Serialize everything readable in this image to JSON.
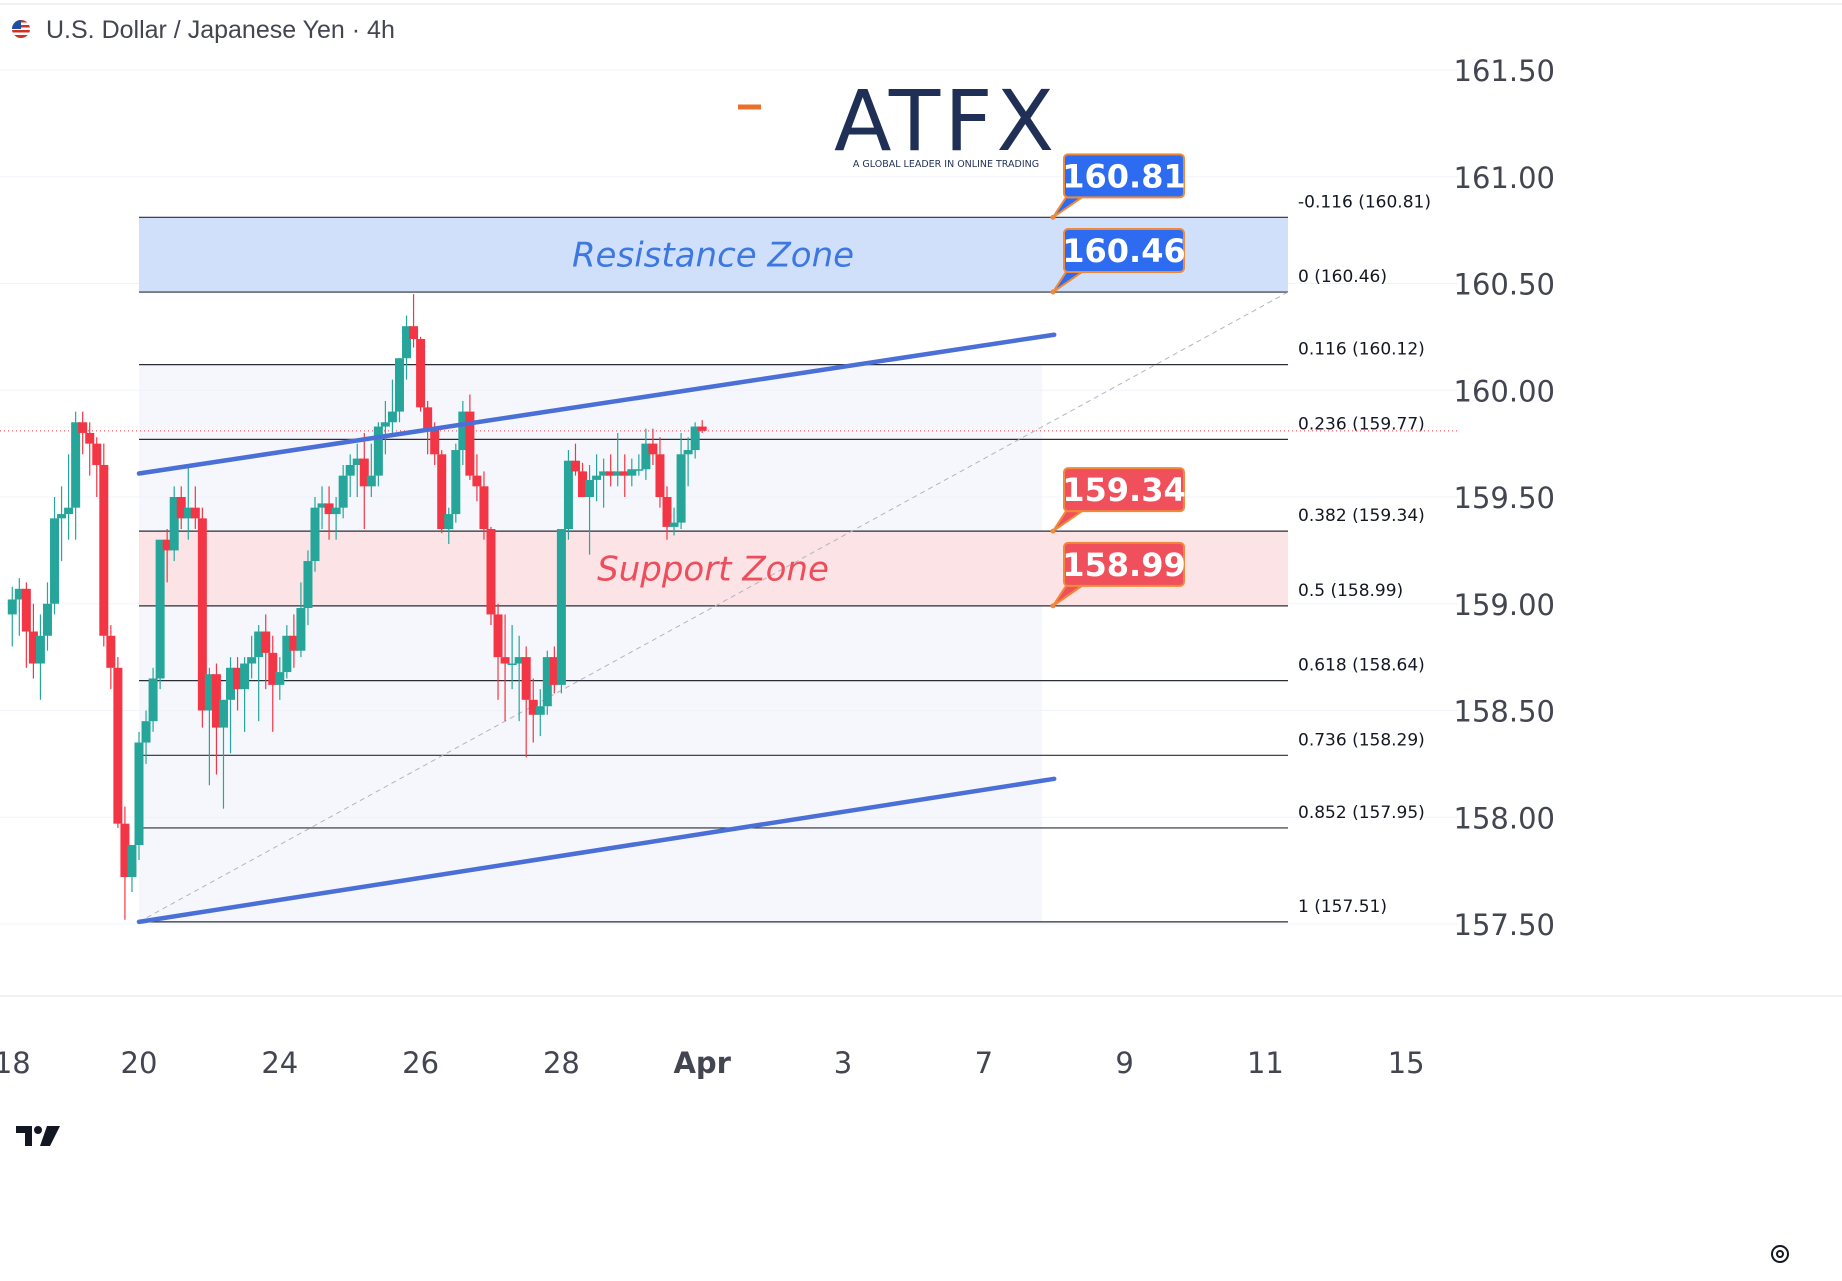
{
  "header": {
    "title": "U.S. Dollar / Japanese Yen",
    "separator": "·",
    "interval": "4h",
    "flag_icon": "us-flag-icon"
  },
  "watermark": {
    "logo_text": "ATFX",
    "tagline": "A GLOBAL LEADER IN ONLINE TRADING"
  },
  "colors": {
    "up": "#26a69a",
    "down": "#f23645",
    "channel": "#4a6fd6",
    "resistance_fill": "#d0e0fb",
    "support_fill": "#fbe3e6",
    "resistance_text": "#3d78e0",
    "support_text": "#ee4d5b",
    "badge_blue": "#2d6cf0",
    "badge_red": "#f0505c",
    "badge_border": "#f08a3a",
    "logo_blue": "#1f2f55",
    "logo_orange": "#e8702a"
  },
  "chart_data": {
    "type": "candlestick",
    "ylim": [
      157.1,
      161.7
    ],
    "y_ticks": [
      "161.50",
      "161.00",
      "160.50",
      "160.00",
      "159.50",
      "159.00",
      "158.50",
      "158.00",
      "157.50"
    ],
    "y_tick_values": [
      161.5,
      161.0,
      160.5,
      160.0,
      159.5,
      159.0,
      158.5,
      158.0,
      157.5
    ],
    "x_ticks": [
      "18",
      "20",
      "24",
      "26",
      "28",
      "Apr",
      "3",
      "7",
      "9",
      "11",
      "15"
    ],
    "x_tick_bar_index": [
      -18,
      0,
      20,
      40,
      60,
      80,
      100,
      120,
      140,
      160,
      180
    ],
    "candles": [
      [
        158.95,
        159.08,
        158.8,
        159.02
      ],
      [
        159.02,
        159.12,
        158.85,
        159.07
      ],
      [
        159.07,
        159.1,
        158.7,
        158.87
      ],
      [
        158.87,
        159.0,
        158.65,
        158.72
      ],
      [
        158.72,
        158.95,
        158.55,
        158.85
      ],
      [
        158.85,
        159.1,
        158.78,
        159.0
      ],
      [
        159.0,
        159.5,
        158.95,
        159.4
      ],
      [
        159.4,
        159.55,
        159.2,
        159.42
      ],
      [
        159.42,
        159.7,
        159.3,
        159.45
      ],
      [
        159.45,
        159.9,
        159.3,
        159.85
      ],
      [
        159.85,
        159.9,
        159.7,
        159.8
      ],
      [
        159.8,
        159.85,
        159.6,
        159.75
      ],
      [
        159.75,
        159.78,
        159.5,
        159.65
      ],
      [
        159.65,
        159.75,
        158.8,
        158.85
      ],
      [
        158.85,
        158.9,
        158.6,
        158.7
      ],
      [
        158.7,
        158.75,
        157.95,
        157.97
      ],
      [
        157.97,
        158.05,
        157.52,
        157.72
      ],
      [
        157.72,
        157.85,
        157.65,
        157.87
      ],
      [
        157.87,
        158.4,
        157.8,
        158.35
      ],
      [
        158.35,
        158.5,
        158.25,
        158.45
      ],
      [
        158.45,
        158.7,
        158.4,
        158.65
      ],
      [
        158.65,
        159.3,
        158.6,
        159.3
      ],
      [
        159.3,
        159.35,
        159.1,
        159.25
      ],
      [
        159.25,
        159.55,
        159.2,
        159.5
      ],
      [
        159.5,
        159.55,
        159.35,
        159.4
      ],
      [
        159.4,
        159.65,
        159.3,
        159.45
      ],
      [
        159.45,
        159.55,
        159.35,
        159.4
      ],
      [
        159.4,
        159.45,
        158.42,
        158.5
      ],
      [
        158.5,
        158.7,
        158.15,
        158.67
      ],
      [
        158.67,
        158.72,
        158.2,
        158.42
      ],
      [
        158.42,
        158.55,
        158.04,
        158.55
      ],
      [
        158.55,
        158.75,
        158.3,
        158.7
      ],
      [
        158.7,
        158.75,
        158.5,
        158.6
      ],
      [
        158.6,
        158.75,
        158.4,
        158.72
      ],
      [
        158.72,
        158.85,
        158.65,
        158.75
      ],
      [
        158.75,
        158.9,
        158.45,
        158.87
      ],
      [
        158.87,
        158.95,
        158.6,
        158.77
      ],
      [
        158.77,
        158.85,
        158.4,
        158.62
      ],
      [
        158.62,
        158.75,
        158.55,
        158.68
      ],
      [
        158.68,
        158.9,
        158.65,
        158.85
      ],
      [
        158.85,
        158.95,
        158.7,
        158.78
      ],
      [
        158.78,
        159.1,
        158.75,
        158.98
      ],
      [
        158.98,
        159.25,
        158.9,
        159.2
      ],
      [
        159.2,
        159.5,
        159.15,
        159.45
      ],
      [
        159.45,
        159.55,
        159.35,
        159.47
      ],
      [
        159.47,
        159.55,
        159.3,
        159.42
      ],
      [
        159.42,
        159.5,
        159.3,
        159.45
      ],
      [
        159.45,
        159.65,
        159.4,
        159.6
      ],
      [
        159.6,
        159.7,
        159.5,
        159.65
      ],
      [
        159.65,
        159.75,
        159.5,
        159.68
      ],
      [
        159.68,
        159.8,
        159.35,
        159.55
      ],
      [
        159.55,
        159.75,
        159.5,
        159.6
      ],
      [
        159.6,
        159.85,
        159.55,
        159.83
      ],
      [
        159.83,
        159.95,
        159.7,
        159.85
      ],
      [
        159.85,
        160.05,
        159.8,
        159.9
      ],
      [
        159.9,
        160.15,
        159.85,
        160.15
      ],
      [
        160.15,
        160.35,
        160.05,
        160.3
      ],
      [
        160.3,
        160.45,
        160.2,
        160.24
      ],
      [
        160.24,
        160.25,
        159.9,
        159.92
      ],
      [
        159.92,
        159.95,
        159.7,
        159.82
      ],
      [
        159.82,
        159.85,
        159.65,
        159.7
      ],
      [
        159.7,
        159.72,
        159.33,
        159.35
      ],
      [
        159.35,
        159.45,
        159.28,
        159.42
      ],
      [
        159.42,
        159.75,
        159.38,
        159.72
      ],
      [
        159.72,
        159.95,
        159.65,
        159.9
      ],
      [
        159.9,
        159.98,
        159.58,
        159.6
      ],
      [
        159.6,
        159.7,
        159.48,
        159.55
      ],
      [
        159.55,
        159.62,
        159.3,
        159.35
      ],
      [
        159.35,
        159.36,
        158.9,
        158.95
      ],
      [
        158.95,
        159.0,
        158.55,
        158.75
      ],
      [
        158.75,
        158.95,
        158.45,
        158.72
      ],
      [
        158.72,
        158.9,
        158.6,
        158.72
      ],
      [
        158.72,
        158.85,
        158.45,
        158.75
      ],
      [
        158.75,
        158.8,
        158.28,
        158.55
      ],
      [
        158.55,
        158.65,
        158.35,
        158.48
      ],
      [
        158.48,
        158.6,
        158.38,
        158.52
      ],
      [
        158.52,
        158.78,
        158.48,
        158.75
      ],
      [
        158.75,
        158.8,
        158.58,
        158.62
      ],
      [
        158.62,
        159.35,
        158.58,
        159.35
      ],
      [
        159.35,
        159.72,
        159.3,
        159.67
      ],
      [
        159.67,
        159.75,
        159.6,
        159.62
      ],
      [
        159.62,
        159.66,
        159.5,
        159.5
      ],
      [
        159.5,
        159.65,
        159.23,
        159.58
      ],
      [
        159.58,
        159.7,
        159.48,
        159.6
      ],
      [
        159.6,
        159.68,
        159.45,
        159.62
      ],
      [
        159.62,
        159.7,
        159.55,
        159.6
      ],
      [
        159.6,
        159.8,
        159.55,
        159.62
      ],
      [
        159.62,
        159.7,
        159.5,
        159.6
      ],
      [
        159.6,
        159.68,
        159.55,
        159.63
      ],
      [
        159.63,
        159.7,
        159.6,
        159.63
      ],
      [
        159.63,
        159.82,
        159.58,
        159.75
      ],
      [
        159.75,
        159.82,
        159.65,
        159.7
      ],
      [
        159.7,
        159.78,
        159.45,
        159.5
      ],
      [
        159.5,
        159.55,
        159.3,
        159.36
      ],
      [
        159.36,
        159.45,
        159.32,
        159.38
      ],
      [
        159.38,
        159.8,
        159.35,
        159.7
      ],
      [
        159.7,
        159.78,
        159.55,
        159.72
      ],
      [
        159.72,
        159.85,
        159.68,
        159.83
      ],
      [
        159.83,
        159.86,
        159.8,
        159.81
      ]
    ],
    "channel": {
      "upper": {
        "from": [
          0,
          159.61
        ],
        "to": [
          130,
          160.26
        ]
      },
      "lower": {
        "from": [
          0,
          157.51
        ],
        "to": [
          130,
          158.18
        ]
      }
    },
    "fib_levels": [
      {
        "ratio": "-0.116",
        "price": 160.81,
        "label": "-0.116 (160.81)"
      },
      {
        "ratio": "0",
        "price": 160.46,
        "label": "0 (160.46)"
      },
      {
        "ratio": "0.116",
        "price": 160.12,
        "label": "0.116 (160.12)"
      },
      {
        "ratio": "0.236",
        "price": 159.77,
        "label": "0.236 (159.77)"
      },
      {
        "ratio": "0.382",
        "price": 159.34,
        "label": "0.382 (159.34)"
      },
      {
        "ratio": "0.5",
        "price": 158.99,
        "label": "0.5 (158.99)"
      },
      {
        "ratio": "0.618",
        "price": 158.64,
        "label": "0.618 (158.64)"
      },
      {
        "ratio": "0.736",
        "price": 158.29,
        "label": "0.736 (158.29)"
      },
      {
        "ratio": "0.852",
        "price": 157.95,
        "label": "0.852 (157.95)"
      },
      {
        "ratio": "1",
        "price": 157.51,
        "label": "1 (157.51)"
      }
    ],
    "zones": [
      {
        "name": "Resistance Zone",
        "top": 160.81,
        "bottom": 160.46,
        "color": "blue"
      },
      {
        "name": "Support Zone",
        "top": 159.34,
        "bottom": 158.99,
        "color": "red"
      }
    ],
    "badges": [
      {
        "text": "160.81",
        "price": 160.81,
        "color": "blue"
      },
      {
        "text": "160.46",
        "price": 160.46,
        "color": "blue"
      },
      {
        "text": "159.34",
        "price": 159.34,
        "color": "red"
      },
      {
        "text": "158.99",
        "price": 158.99,
        "color": "red"
      }
    ],
    "current_price": 159.81
  }
}
